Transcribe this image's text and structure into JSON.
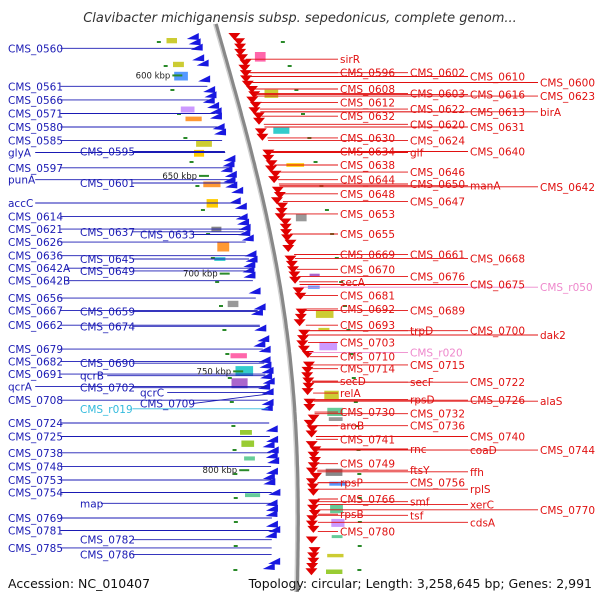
{
  "title": "Clavibacter michiganensis subsp. sepedonicus, complete genom...",
  "accession": "Accession: NC_010407",
  "topology": "Topology: circular; Length: 3,258,645 bp; Genes: 2,991",
  "colors": {
    "minus_label": "#1a1ab4",
    "plus_label": "#e01010",
    "rna_label_cyan": "#33bbdd",
    "rna_label_pink": "#ee88cc",
    "backbone": "#999999",
    "tick": "#2a8a2a"
  },
  "kbp_markers": [
    {
      "label": "600 kbp",
      "pos": 0.08
    },
    {
      "label": "650 kbp",
      "pos": 0.265
    },
    {
      "label": "700 kbp",
      "pos": 0.445
    },
    {
      "label": "750 kbp",
      "pos": 0.625
    },
    {
      "label": "800 kbp",
      "pos": 0.807
    }
  ],
  "left_labels": [
    {
      "text": "CMS_0560",
      "pos": 0.03
    },
    {
      "text": "CMS_0561",
      "pos": 0.1
    },
    {
      "text": "CMS_0566",
      "pos": 0.125
    },
    {
      "text": "CMS_0571",
      "pos": 0.15
    },
    {
      "text": "CMS_0580",
      "pos": 0.175
    },
    {
      "text": "CMS_0585",
      "pos": 0.2
    },
    {
      "text": "glyA",
      "pos": 0.222
    },
    {
      "text": "CMS_0595",
      "pos": 0.22
    },
    {
      "text": "CMS_0597",
      "pos": 0.25
    },
    {
      "text": "CMS_0601",
      "pos": 0.278
    },
    {
      "text": "punA",
      "pos": 0.272
    },
    {
      "text": "accC",
      "pos": 0.315
    },
    {
      "text": "CMS_0614",
      "pos": 0.34
    },
    {
      "text": "CMS_0621",
      "pos": 0.363
    },
    {
      "text": "CMS_0626",
      "pos": 0.387
    },
    {
      "text": "CMS_0633",
      "pos": 0.373
    },
    {
      "text": "CMS_0637",
      "pos": 0.368
    },
    {
      "text": "CMS_0636",
      "pos": 0.412
    },
    {
      "text": "CMS_0645",
      "pos": 0.418
    },
    {
      "text": "CMS_0642A",
      "pos": 0.435
    },
    {
      "text": "CMS_0649",
      "pos": 0.44
    },
    {
      "text": "CMS_0642B",
      "pos": 0.458
    },
    {
      "text": "CMS_0656",
      "pos": 0.49
    },
    {
      "text": "CMS_0659",
      "pos": 0.515
    },
    {
      "text": "CMS_0667",
      "pos": 0.513
    },
    {
      "text": "CMS_0662",
      "pos": 0.54
    },
    {
      "text": "CMS_0674",
      "pos": 0.542
    },
    {
      "text": "CMS_0679",
      "pos": 0.584
    },
    {
      "text": "CMS_0682",
      "pos": 0.607
    },
    {
      "text": "CMS_0690",
      "pos": 0.61
    },
    {
      "text": "CMS_0691",
      "pos": 0.63
    },
    {
      "text": "qcrB",
      "pos": 0.633
    },
    {
      "text": "qcrA",
      "pos": 0.653
    },
    {
      "text": "CMS_0702",
      "pos": 0.655
    },
    {
      "text": "qcrC",
      "pos": 0.664
    },
    {
      "text": "CMS_0708",
      "pos": 0.678
    },
    {
      "text": "CMS_0709",
      "pos": 0.667
    },
    {
      "text": "CMS_r019",
      "pos": 0.694,
      "rna": true
    },
    {
      "text": "CMS_0724",
      "pos": 0.72
    },
    {
      "text": "CMS_0725",
      "pos": 0.745
    },
    {
      "text": "CMS_0738",
      "pos": 0.775
    },
    {
      "text": "CMS_0748",
      "pos": 0.8
    },
    {
      "text": "CMS_0753",
      "pos": 0.825
    },
    {
      "text": "CMS_0754",
      "pos": 0.848
    },
    {
      "text": "map",
      "pos": 0.868
    },
    {
      "text": "CMS_0769",
      "pos": 0.895
    },
    {
      "text": "CMS_0781",
      "pos": 0.918
    },
    {
      "text": "CMS_0782",
      "pos": 0.935
    },
    {
      "text": "CMS_0785",
      "pos": 0.95
    },
    {
      "text": "CMS_0786",
      "pos": 0.962
    }
  ],
  "right_labels": [
    {
      "text": "sirR",
      "pos": 0.05
    },
    {
      "text": "CMS_0596",
      "pos": 0.075
    },
    {
      "text": "CMS_0602",
      "pos": 0.075
    },
    {
      "text": "CMS_0610",
      "pos": 0.082
    },
    {
      "text": "CMS_0600",
      "pos": 0.093
    },
    {
      "text": "CMS_0608",
      "pos": 0.105
    },
    {
      "text": "CMS_0616",
      "pos": 0.115
    },
    {
      "text": "CMS_0623",
      "pos": 0.118
    },
    {
      "text": "CMS_0603",
      "pos": 0.113
    },
    {
      "text": "CMS_0612",
      "pos": 0.13
    },
    {
      "text": "CMS_0613",
      "pos": 0.147
    },
    {
      "text": "birA",
      "pos": 0.147
    },
    {
      "text": "CMS_0622",
      "pos": 0.142
    },
    {
      "text": "CMS_0632",
      "pos": 0.155
    },
    {
      "text": "CMS_0620",
      "pos": 0.17
    },
    {
      "text": "CMS_0631",
      "pos": 0.175
    },
    {
      "text": "CMS_0630",
      "pos": 0.195
    },
    {
      "text": "CMS_0624",
      "pos": 0.2
    },
    {
      "text": "CMS_0634",
      "pos": 0.22
    },
    {
      "text": "glf",
      "pos": 0.222
    },
    {
      "text": "CMS_0640",
      "pos": 0.22
    },
    {
      "text": "CMS_0638",
      "pos": 0.245
    },
    {
      "text": "CMS_0646",
      "pos": 0.258
    },
    {
      "text": "CMS_0644",
      "pos": 0.272
    },
    {
      "text": "CMS_0650",
      "pos": 0.28
    },
    {
      "text": "CMS_0642",
      "pos": 0.285
    },
    {
      "text": "manA",
      "pos": 0.283
    },
    {
      "text": "CMS_0648",
      "pos": 0.298
    },
    {
      "text": "CMS_0647",
      "pos": 0.312
    },
    {
      "text": "CMS_0653",
      "pos": 0.335
    },
    {
      "text": "CMS_0655",
      "pos": 0.372
    },
    {
      "text": "CMS_0669",
      "pos": 0.41
    },
    {
      "text": "CMS_0661",
      "pos": 0.41
    },
    {
      "text": "CMS_0668",
      "pos": 0.417
    },
    {
      "text": "CMS_0670",
      "pos": 0.437
    },
    {
      "text": "CMS_0676",
      "pos": 0.45
    },
    {
      "text": "secA",
      "pos": 0.46
    },
    {
      "text": "CMS_0675",
      "pos": 0.465
    },
    {
      "text": "CMS_r050",
      "pos": 0.47,
      "rna": true
    },
    {
      "text": "CMS_0681",
      "pos": 0.485
    },
    {
      "text": "CMS_0692",
      "pos": 0.51
    },
    {
      "text": "CMS_0689",
      "pos": 0.513
    },
    {
      "text": "CMS_0693",
      "pos": 0.54
    },
    {
      "text": "trpD",
      "pos": 0.55
    },
    {
      "text": "CMS_0700",
      "pos": 0.55
    },
    {
      "text": "dak2",
      "pos": 0.558
    },
    {
      "text": "CMS_0703",
      "pos": 0.572
    },
    {
      "text": "CMS_r020",
      "pos": 0.59,
      "rna": true
    },
    {
      "text": "CMS_0710",
      "pos": 0.598
    },
    {
      "text": "CMS_0715",
      "pos": 0.613
    },
    {
      "text": "CMS_0714",
      "pos": 0.62
    },
    {
      "text": "secD",
      "pos": 0.643
    },
    {
      "text": "secF",
      "pos": 0.645
    },
    {
      "text": "CMS_0722",
      "pos": 0.645
    },
    {
      "text": "relA",
      "pos": 0.665
    },
    {
      "text": "CMS_0726",
      "pos": 0.678
    },
    {
      "text": "rpsD",
      "pos": 0.677
    },
    {
      "text": "alaS",
      "pos": 0.68
    },
    {
      "text": "CMS_0730",
      "pos": 0.7
    },
    {
      "text": "CMS_0732",
      "pos": 0.703
    },
    {
      "text": "aroB",
      "pos": 0.725
    },
    {
      "text": "CMS_0736",
      "pos": 0.725
    },
    {
      "text": "CMS_0740",
      "pos": 0.745
    },
    {
      "text": "CMS_0741",
      "pos": 0.75
    },
    {
      "text": "coaD",
      "pos": 0.77
    },
    {
      "text": "CMS_0744",
      "pos": 0.77
    },
    {
      "text": "rnc",
      "pos": 0.768
    },
    {
      "text": "CMS_0749",
      "pos": 0.795
    },
    {
      "text": "ftsY",
      "pos": 0.807
    },
    {
      "text": "ffh",
      "pos": 0.81
    },
    {
      "text": "rpsP",
      "pos": 0.83
    },
    {
      "text": "CMS_0756",
      "pos": 0.83
    },
    {
      "text": "rplS",
      "pos": 0.842
    },
    {
      "text": "CMS_0766",
      "pos": 0.86
    },
    {
      "text": "smf",
      "pos": 0.865
    },
    {
      "text": "xerC",
      "pos": 0.87
    },
    {
      "text": "CMS_0770",
      "pos": 0.88
    },
    {
      "text": "rpsB",
      "pos": 0.888
    },
    {
      "text": "tsf",
      "pos": 0.89
    },
    {
      "text": "cdsA",
      "pos": 0.903
    },
    {
      "text": "CMS_0780",
      "pos": 0.92
    }
  ]
}
